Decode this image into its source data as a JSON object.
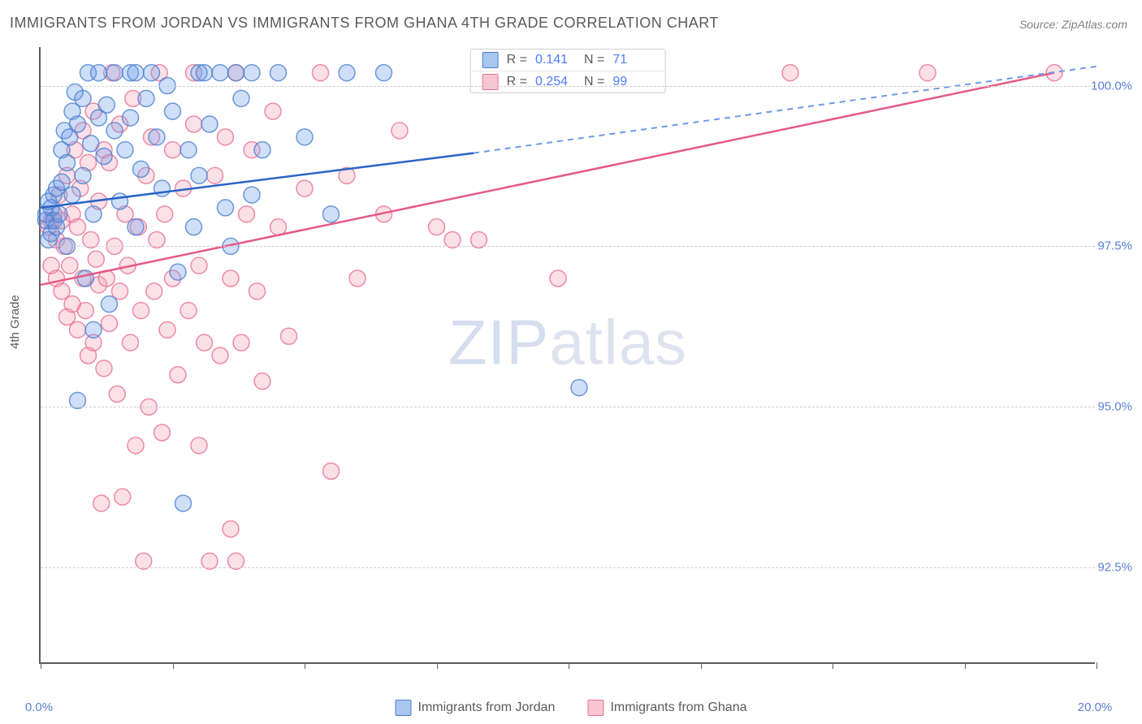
{
  "title": "IMMIGRANTS FROM JORDAN VS IMMIGRANTS FROM GHANA 4TH GRADE CORRELATION CHART",
  "source": "Source: ZipAtlas.com",
  "ylabel": "4th Grade",
  "watermark": {
    "bold": "ZIP",
    "light": "atlas"
  },
  "chart": {
    "type": "scatter",
    "xlim": [
      0,
      20
    ],
    "ylim": [
      91,
      100.6
    ],
    "xtick_labels": {
      "0": "0.0%",
      "20": "20.0%"
    },
    "xtick_positions": [
      0,
      2.5,
      5,
      7.5,
      10,
      12.5,
      15,
      17.5,
      20
    ],
    "ytick_positions": [
      92.5,
      95.0,
      97.5,
      100.0
    ],
    "ytick_labels": [
      "92.5%",
      "95.0%",
      "97.5%",
      "100.0%"
    ],
    "grid_color": "#cfcfcf",
    "axis_color": "#5c5c5c",
    "background_color": "#ffffff",
    "marker_radius": 10,
    "marker_fill_opacity": 0.32,
    "series": [
      {
        "name": "Immigrants from Jordan",
        "color": "#6b9be8",
        "stroke": "#4a7fd0",
        "R": "0.141",
        "N": "71",
        "trend": {
          "x1": 0,
          "y1": 98.1,
          "x2": 8.2,
          "y2": 98.95,
          "ext_x2": 20,
          "ext_y2": 100.3,
          "solid_color": "#2b63c8",
          "dash_color": "#6b9be8"
        },
        "points": [
          [
            0.1,
            97.9
          ],
          [
            0.1,
            98.0
          ],
          [
            0.15,
            97.6
          ],
          [
            0.15,
            98.2
          ],
          [
            0.2,
            98.1
          ],
          [
            0.2,
            97.7
          ],
          [
            0.25,
            98.3
          ],
          [
            0.25,
            97.9
          ],
          [
            0.3,
            97.8
          ],
          [
            0.3,
            98.4
          ],
          [
            0.35,
            98.0
          ],
          [
            0.4,
            98.5
          ],
          [
            0.4,
            99.0
          ],
          [
            0.45,
            99.3
          ],
          [
            0.5,
            97.5
          ],
          [
            0.5,
            98.8
          ],
          [
            0.55,
            99.2
          ],
          [
            0.6,
            99.6
          ],
          [
            0.6,
            98.3
          ],
          [
            0.65,
            99.9
          ],
          [
            0.7,
            95.1
          ],
          [
            0.7,
            99.4
          ],
          [
            0.8,
            98.6
          ],
          [
            0.8,
            99.8
          ],
          [
            0.85,
            97.0
          ],
          [
            0.9,
            100.2
          ],
          [
            0.95,
            99.1
          ],
          [
            1.0,
            96.2
          ],
          [
            1.0,
            98.0
          ],
          [
            1.1,
            99.5
          ],
          [
            1.1,
            100.2
          ],
          [
            1.2,
            98.9
          ],
          [
            1.25,
            99.7
          ],
          [
            1.3,
            96.6
          ],
          [
            1.4,
            99.3
          ],
          [
            1.4,
            100.2
          ],
          [
            1.5,
            98.2
          ],
          [
            1.6,
            99.0
          ],
          [
            1.7,
            100.2
          ],
          [
            1.7,
            99.5
          ],
          [
            1.8,
            97.8
          ],
          [
            1.8,
            100.2
          ],
          [
            1.9,
            98.7
          ],
          [
            2.0,
            99.8
          ],
          [
            2.1,
            100.2
          ],
          [
            2.2,
            99.2
          ],
          [
            2.3,
            98.4
          ],
          [
            2.4,
            100.0
          ],
          [
            2.5,
            99.6
          ],
          [
            2.6,
            97.1
          ],
          [
            2.7,
            93.5
          ],
          [
            2.8,
            99.0
          ],
          [
            2.9,
            97.8
          ],
          [
            3.0,
            100.2
          ],
          [
            3.0,
            98.6
          ],
          [
            3.1,
            100.2
          ],
          [
            3.2,
            99.4
          ],
          [
            3.4,
            100.2
          ],
          [
            3.5,
            98.1
          ],
          [
            3.6,
            97.5
          ],
          [
            3.7,
            100.2
          ],
          [
            3.8,
            99.8
          ],
          [
            4.0,
            100.2
          ],
          [
            4.0,
            98.3
          ],
          [
            4.2,
            99.0
          ],
          [
            4.5,
            100.2
          ],
          [
            5.0,
            99.2
          ],
          [
            5.5,
            98.0
          ],
          [
            5.8,
            100.2
          ],
          [
            6.5,
            100.2
          ],
          [
            10.2,
            95.3
          ]
        ]
      },
      {
        "name": "Immigrants from Ghana",
        "color": "#f29fb5",
        "stroke": "#e87092",
        "R": "0.254",
        "N": "99",
        "trend": {
          "x1": 0,
          "y1": 96.9,
          "x2": 19.2,
          "y2": 100.2,
          "solid_color": "#e65a84"
        },
        "points": [
          [
            0.15,
            97.8
          ],
          [
            0.2,
            97.9
          ],
          [
            0.2,
            97.2
          ],
          [
            0.25,
            98.0
          ],
          [
            0.3,
            97.0
          ],
          [
            0.3,
            97.6
          ],
          [
            0.35,
            98.3
          ],
          [
            0.4,
            96.8
          ],
          [
            0.4,
            97.9
          ],
          [
            0.45,
            97.5
          ],
          [
            0.5,
            96.4
          ],
          [
            0.5,
            98.6
          ],
          [
            0.55,
            97.2
          ],
          [
            0.6,
            98.0
          ],
          [
            0.6,
            96.6
          ],
          [
            0.65,
            99.0
          ],
          [
            0.7,
            97.8
          ],
          [
            0.7,
            96.2
          ],
          [
            0.75,
            98.4
          ],
          [
            0.8,
            97.0
          ],
          [
            0.8,
            99.3
          ],
          [
            0.85,
            96.5
          ],
          [
            0.9,
            98.8
          ],
          [
            0.9,
            95.8
          ],
          [
            0.95,
            97.6
          ],
          [
            1.0,
            99.6
          ],
          [
            1.0,
            96.0
          ],
          [
            1.05,
            97.3
          ],
          [
            1.1,
            98.2
          ],
          [
            1.1,
            96.9
          ],
          [
            1.15,
            93.5
          ],
          [
            1.2,
            99.0
          ],
          [
            1.2,
            95.6
          ],
          [
            1.25,
            97.0
          ],
          [
            1.3,
            96.3
          ],
          [
            1.3,
            98.8
          ],
          [
            1.35,
            100.2
          ],
          [
            1.4,
            97.5
          ],
          [
            1.45,
            95.2
          ],
          [
            1.5,
            99.4
          ],
          [
            1.5,
            96.8
          ],
          [
            1.55,
            93.6
          ],
          [
            1.6,
            98.0
          ],
          [
            1.65,
            97.2
          ],
          [
            1.7,
            96.0
          ],
          [
            1.75,
            99.8
          ],
          [
            1.8,
            94.4
          ],
          [
            1.85,
            97.8
          ],
          [
            1.9,
            96.5
          ],
          [
            1.95,
            92.6
          ],
          [
            2.0,
            98.6
          ],
          [
            2.05,
            95.0
          ],
          [
            2.1,
            99.2
          ],
          [
            2.15,
            96.8
          ],
          [
            2.2,
            97.6
          ],
          [
            2.25,
            100.2
          ],
          [
            2.3,
            94.6
          ],
          [
            2.35,
            98.0
          ],
          [
            2.4,
            96.2
          ],
          [
            2.5,
            99.0
          ],
          [
            2.5,
            97.0
          ],
          [
            2.6,
            95.5
          ],
          [
            2.7,
            98.4
          ],
          [
            2.8,
            96.5
          ],
          [
            2.9,
            100.2
          ],
          [
            2.9,
            99.4
          ],
          [
            3.0,
            94.4
          ],
          [
            3.0,
            97.2
          ],
          [
            3.1,
            96.0
          ],
          [
            3.2,
            92.6
          ],
          [
            3.3,
            98.6
          ],
          [
            3.4,
            95.8
          ],
          [
            3.5,
            99.2
          ],
          [
            3.6,
            97.0
          ],
          [
            3.6,
            93.1
          ],
          [
            3.7,
            100.2
          ],
          [
            3.7,
            92.6
          ],
          [
            3.8,
            96.0
          ],
          [
            3.9,
            98.0
          ],
          [
            4.0,
            99.0
          ],
          [
            4.1,
            96.8
          ],
          [
            4.2,
            95.4
          ],
          [
            4.4,
            99.6
          ],
          [
            4.5,
            97.8
          ],
          [
            4.7,
            96.1
          ],
          [
            5.0,
            98.4
          ],
          [
            5.3,
            100.2
          ],
          [
            5.5,
            94.0
          ],
          [
            5.8,
            98.6
          ],
          [
            6.0,
            97.0
          ],
          [
            6.5,
            98.0
          ],
          [
            6.8,
            99.3
          ],
          [
            7.5,
            97.8
          ],
          [
            7.8,
            97.6
          ],
          [
            8.3,
            97.6
          ],
          [
            9.8,
            97.0
          ],
          [
            14.2,
            100.2
          ],
          [
            16.8,
            100.2
          ],
          [
            19.2,
            100.2
          ]
        ]
      }
    ]
  },
  "legend": {
    "series1_label": "Immigrants from Jordan",
    "series2_label": "Immigrants from Ghana"
  },
  "colors": {
    "blue_fill": "#a8c6f0",
    "blue_stroke": "#6b9be8",
    "pink_fill": "#f7c6d2",
    "pink_stroke": "#f29fb5",
    "tick_label": "#5b7fd6",
    "text": "#5a5a5a"
  }
}
